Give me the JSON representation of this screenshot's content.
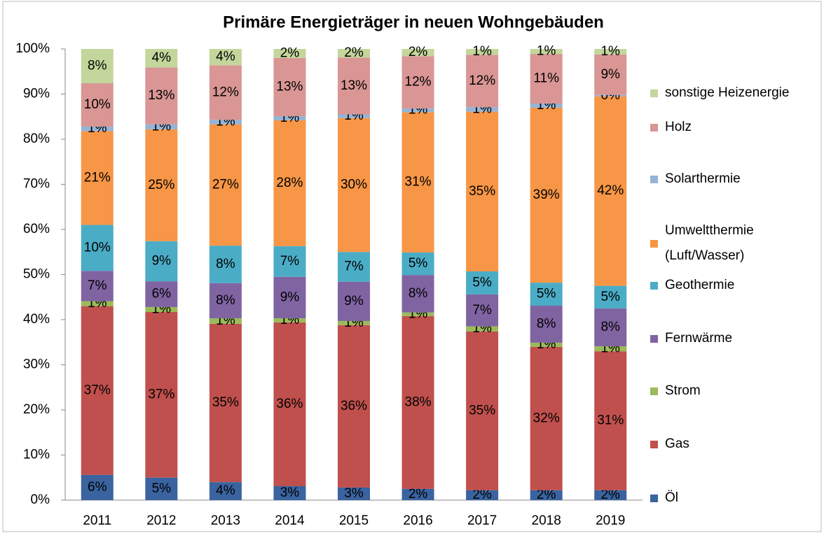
{
  "chart_data": {
    "type": "stacked_bar",
    "title": "Primäre Energieträger in neuen Wohngebäuden",
    "categories": [
      "2011",
      "2012",
      "2013",
      "2014",
      "2015",
      "2016",
      "2017",
      "2018",
      "2019"
    ],
    "ylim": [
      0,
      100
    ],
    "yticks": [
      {
        "value": 0,
        "label": "0%"
      },
      {
        "value": 10,
        "label": "10%"
      },
      {
        "value": 20,
        "label": "20%"
      },
      {
        "value": 30,
        "label": "30%"
      },
      {
        "value": 40,
        "label": "40%"
      },
      {
        "value": 50,
        "label": "50%"
      },
      {
        "value": 60,
        "label": "60%"
      },
      {
        "value": 70,
        "label": "70%"
      },
      {
        "value": 80,
        "label": "80%"
      },
      {
        "value": 90,
        "label": "90%"
      },
      {
        "value": 100,
        "label": "100%"
      }
    ],
    "grid": false,
    "legend": "right",
    "series": [
      {
        "name": "Öl",
        "color": "#3a63a0",
        "values": [
          5.6,
          5.0,
          4.0,
          3.1,
          2.8,
          2.5,
          2.2,
          2.2,
          2.2
        ],
        "value_labels": [
          "6%",
          "5%",
          "4%",
          "3%",
          "3%",
          "2%",
          "2%",
          "2%",
          "2%"
        ]
      },
      {
        "name": "Gas",
        "color": "#c0504d",
        "values": [
          37.4,
          36.7,
          35.1,
          36.3,
          36.0,
          38.3,
          35.2,
          31.8,
          30.8
        ],
        "value_labels": [
          "37%",
          "37%",
          "35%",
          "36%",
          "36%",
          "38%",
          "35%",
          "32%",
          "31%"
        ]
      },
      {
        "name": "Strom",
        "color": "#9bbb59",
        "values": [
          1.1,
          1.1,
          1.2,
          0.9,
          0.9,
          0.8,
          1.1,
          0.9,
          1.1
        ],
        "value_labels": [
          "1%",
          "1%",
          "1%",
          "1%",
          "1%",
          "1%",
          "1%",
          "1%",
          "1%"
        ]
      },
      {
        "name": "Fernwärme",
        "color": "#8064a2",
        "values": [
          6.7,
          5.7,
          7.8,
          9.2,
          8.7,
          8.3,
          7.1,
          8.2,
          8.4
        ],
        "value_labels": [
          "7%",
          "6%",
          "8%",
          "9%",
          "9%",
          "8%",
          "7%",
          "8%",
          "8%"
        ]
      },
      {
        "name": "Geothermie",
        "color": "#4bacc6",
        "values": [
          10.2,
          8.9,
          8.3,
          6.8,
          6.6,
          5.0,
          5.1,
          5.1,
          5.0
        ],
        "value_labels": [
          "10%",
          "9%",
          "8%",
          "7%",
          "7%",
          "5%",
          "5%",
          "5%",
          "5%"
        ]
      },
      {
        "name": "Umweltthermie (Luft/Wasser)",
        "color": "#f79646",
        "values": [
          20.8,
          24.8,
          26.9,
          27.9,
          29.7,
          31.1,
          35.4,
          38.8,
          42.0
        ],
        "value_labels": [
          "21%",
          "25%",
          "27%",
          "28%",
          "30%",
          "31%",
          "35%",
          "39%",
          "42%"
        ]
      },
      {
        "name": "Solarthermie",
        "color": "#95b3d7",
        "values": [
          1.0,
          1.1,
          1.0,
          0.9,
          0.8,
          0.8,
          1.0,
          0.9,
          0.3
        ],
        "value_labels": [
          "1%",
          "1%",
          "1%",
          "1%",
          "1%",
          "1%",
          "1%",
          "1%",
          "0%"
        ]
      },
      {
        "name": "Holz",
        "color": "#d99694",
        "values": [
          9.6,
          12.6,
          12.1,
          12.9,
          12.6,
          11.6,
          11.6,
          11.0,
          9.0
        ],
        "value_labels": [
          "10%",
          "13%",
          "12%",
          "13%",
          "13%",
          "12%",
          "12%",
          "11%",
          "9%"
        ]
      },
      {
        "name": "sonstige Heizenergie",
        "color": "#c3d69b",
        "values": [
          7.6,
          4.1,
          3.6,
          2.0,
          1.9,
          1.6,
          1.3,
          1.1,
          1.2
        ],
        "value_labels": [
          "8%",
          "4%",
          "4%",
          "2%",
          "2%",
          "2%",
          "1%",
          "1%",
          "1%"
        ]
      }
    ]
  }
}
